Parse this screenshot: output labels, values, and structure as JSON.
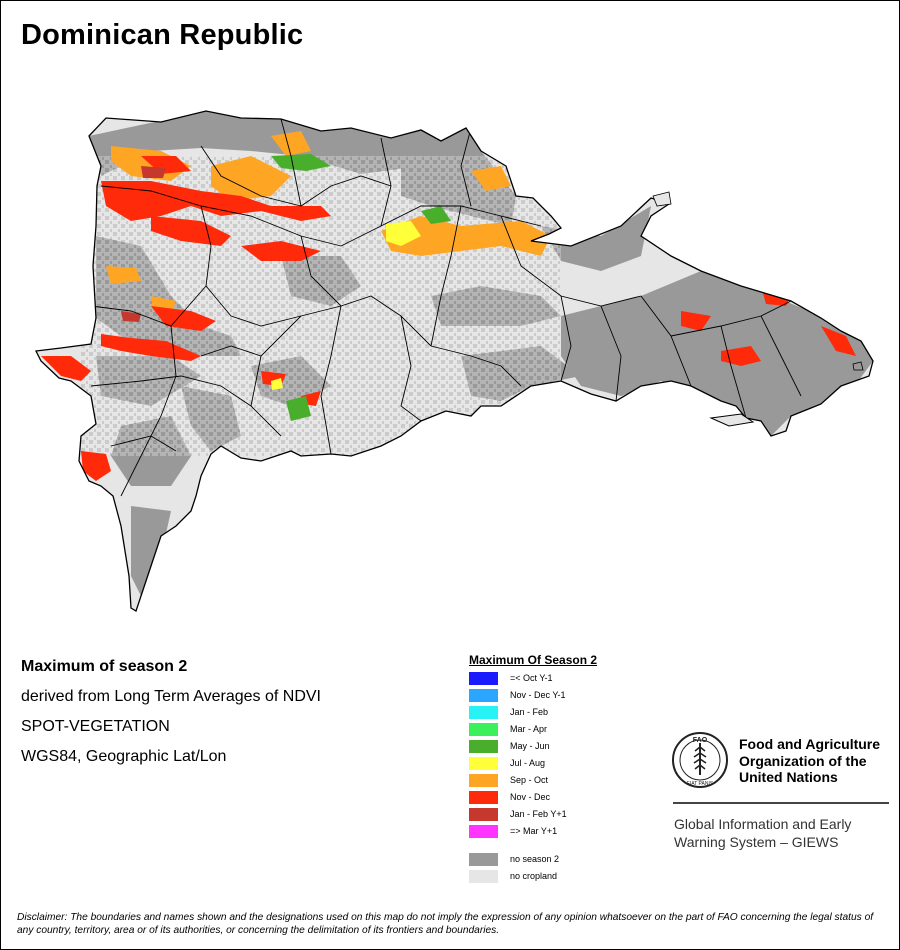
{
  "map": {
    "title": "Dominican Republic",
    "info_lines": [
      "Maximum of season 2",
      "derived from Long Term Averages of NDVI",
      "SPOT-VEGETATION",
      "WGS84, Geographic Lat/Lon"
    ]
  },
  "legend": {
    "title": "Maximum Of Season 2",
    "items": [
      {
        "label": "=< Oct Y-1",
        "color": "#1a1aff"
      },
      {
        "label": "Nov - Dec Y-1",
        "color": "#2aa6ff"
      },
      {
        "label": "Jan - Feb",
        "color": "#27f3f6"
      },
      {
        "label": "Mar - Apr",
        "color": "#3cf05c"
      },
      {
        "label": "May - Jun",
        "color": "#48ae2c"
      },
      {
        "label": "Jul - Aug",
        "color": "#ffff3a"
      },
      {
        "label": "Sep - Oct",
        "color": "#ffa524"
      },
      {
        "label": "Nov - Dec",
        "color": "#ff2a0a"
      },
      {
        "label": "Jan - Feb Y+1",
        "color": "#c6382e"
      },
      {
        "label": "=> Mar Y+1",
        "color": "#ff35ff"
      }
    ],
    "extra_items": [
      {
        "label": "no season 2",
        "color": "#999999"
      },
      {
        "label": "no cropland",
        "color": "#e6e6e6"
      }
    ]
  },
  "organization": {
    "emblem_text": "FAO",
    "emblem_motto": "FIAT PANIS",
    "name": "Food and Agriculture Organization of the United Nations",
    "system": "Global Information and Early Warning System – GIEWS"
  },
  "disclaimer": "Disclaimer: The boundaries and names shown and the designations used on this map do not imply the expression of any opinion whatsoever on the part of FAO concerning the legal status of any country, territory, area or of its authorities, or concerning the delimitation of its frontiers and boundaries.",
  "colors": {
    "no_season": "#999999",
    "no_cropland": "#e6e6e6",
    "boundary": "#000000"
  }
}
